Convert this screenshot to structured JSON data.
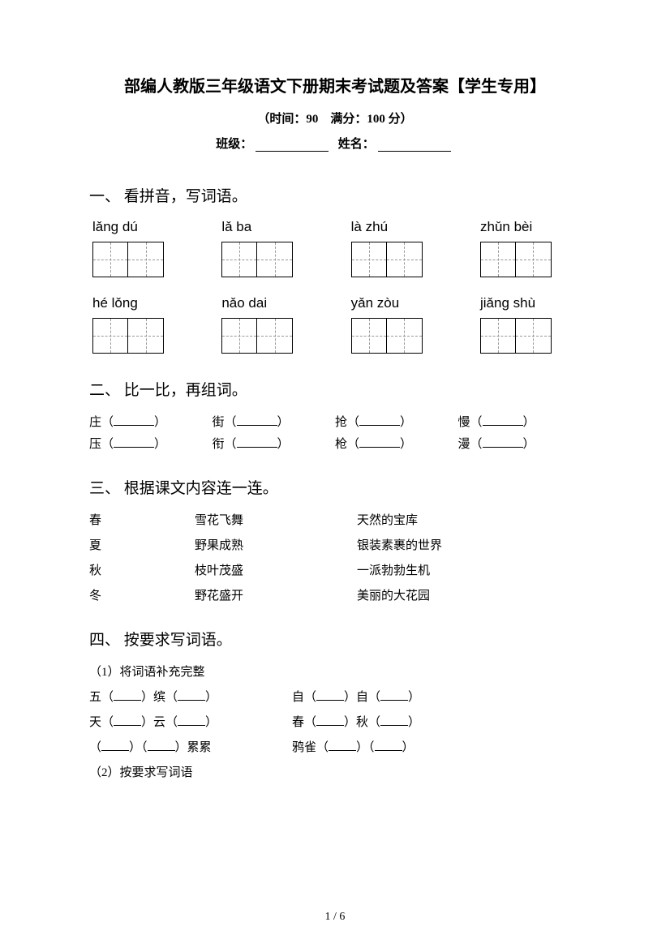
{
  "title": "部编人教版三年级语文下册期末考试题及答案【学生专用】",
  "subtitle": "（时间：90　满分：100 分）",
  "info": {
    "class_label": "班级：",
    "name_label": "姓名："
  },
  "q1": {
    "heading": "一、 看拼音，写词语。",
    "row1": [
      "lǎng  dú",
      "lǎ   ba",
      "là   zhú",
      "zhǔn bèi"
    ],
    "row2": [
      "hé   lǒng",
      "nǎo  dai",
      "yǎn  zòu",
      "jiǎng shù"
    ]
  },
  "q2": {
    "heading": "二、 比一比，再组词。",
    "row1": [
      "庄",
      "街",
      "抢",
      "慢"
    ],
    "row2": [
      "压",
      "衔",
      "枪",
      "漫"
    ]
  },
  "q3": {
    "heading": "三、 根据课文内容连一连。",
    "rows": [
      [
        "春",
        "雪花飞舞",
        "天然的宝库"
      ],
      [
        "夏",
        "野果成熟",
        "银装素裹的世界"
      ],
      [
        "秋",
        "枝叶茂盛",
        "一派勃勃生机"
      ],
      [
        "冬",
        "野花盛开",
        "美丽的大花园"
      ]
    ]
  },
  "q4": {
    "heading": "四、 按要求写词语。",
    "sub1": "（1）将词语补充完整",
    "rows": [
      {
        "l": [
          "五（",
          "）缤（",
          "）"
        ],
        "r": [
          "自（",
          "）自（",
          "）"
        ]
      },
      {
        "l": [
          "天（",
          "）云（",
          "）"
        ],
        "r": [
          "春（",
          "）秋（",
          "）"
        ]
      },
      {
        "l": [
          "（",
          "）（",
          "）累累"
        ],
        "r": [
          "鸦雀（",
          "）（",
          "）"
        ]
      }
    ],
    "sub2": "（2）按要求写词语"
  },
  "page_num": "1 / 6"
}
